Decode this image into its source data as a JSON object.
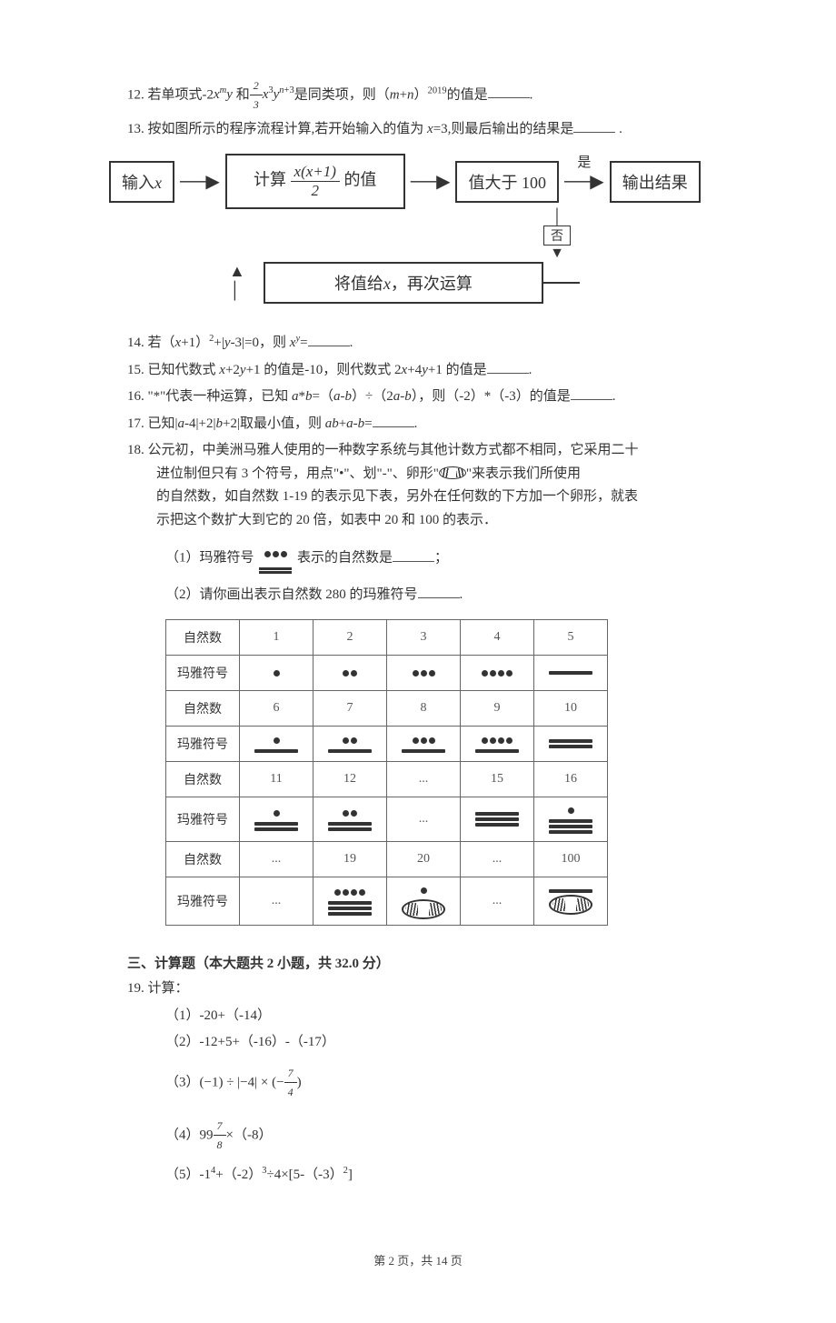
{
  "q12": {
    "num": "12.",
    "text_a": "若单项式-2",
    "expr1_html": "<span class='it'>x<sup>m</sup>y</span>",
    "text_b": "和",
    "expr2_html": "<span class='frac' style='font-size:12px;'><span class='num' style='font-size:12px;'>2</span><span class='den' style='font-size:12px;'>3</span></span><span class='it'>x</span><sup>3</sup><span class='it'>y</span><sup><span class='it'>n</span>+3</sup>",
    "text_c": "是同类项，则（",
    "expr3_html": "<span class='it'>m</span>+<span class='it'>n</span>",
    "text_d": "）",
    "sup": "2019",
    "text_e": "的值是",
    "text_f": "."
  },
  "q13": {
    "num": "13.",
    "text": "按如图所示的程序流程计算,若开始输入的值为 ",
    "expr_html": "<span class='it'>x</span>=3",
    "text2": ",则最后输出的结果是",
    "text3": " ."
  },
  "flow": {
    "b1": "输入<span class='it'>x</span>",
    "b2_pre": "计算",
    "b2_num": "<span class='it'>x</span>(<span class='it'>x</span>+1)",
    "b2_den": "2",
    "b2_post": "的值",
    "b3": "值大于 100",
    "b4": "输出结果",
    "b5": "将值给<span class='it'>x</span>，再次运算",
    "yes": "是",
    "no": "否"
  },
  "q14": {
    "num": "14.",
    "text_a": "若（",
    "e1": "<span class='it'>x</span>+1",
    "text_b": "）",
    "sup": "2",
    "text_c": "+|<span class='it'>y</span>-3|=0，则 ",
    "e2": "<span class='it'>x<sup>y</sup></span>=",
    "text_d": "."
  },
  "q15": {
    "num": "15.",
    "text_a": "已知代数式 ",
    "e1": "<span class='it'>x</span>+2<span class='it'>y</span>+1",
    "text_b": " 的值是-10，则代数式 ",
    "e2": "2<span class='it'>x</span>+4<span class='it'>y</span>+1",
    "text_c": " 的值是",
    "text_d": "."
  },
  "q16": {
    "num": "16.",
    "text_a": "\"*\"代表一种运算，已知 ",
    "e1": "<span class='it'>a</span>*<span class='it'>b</span>=（<span class='it'>a</span>-<span class='it'>b</span>）÷（2<span class='it'>a</span>-<span class='it'>b</span>）",
    "text_b": "，则（-2）*（-3）的值是",
    "text_c": "."
  },
  "q17": {
    "num": "17.",
    "text_a": "已知|<span class='it'>a</span>-4|+2|<span class='it'>b</span>+2|取最小值，则 ",
    "e1": "<span class='it'>ab</span>+<span class='it'>a</span>-<span class='it'>b</span>=",
    "text_b": "."
  },
  "q18": {
    "num": "18.",
    "line1": "公元初，中美洲马雅人使用的一种数字系统与其他计数方式都不相同，它采用二十",
    "line2a": "进位制但只有 3 个符号，用点\"•\"、划\"-\"、卵形\"",
    "line2b": "\"来表示我们所使用",
    "line3": "的自然数，如自然数 1-19 的表示见下表，另外在任何数的下方加一个卵形，就表",
    "line4": "示把这个数扩大到它的 20 倍，如表中 20 和 100 的表示．",
    "p1a": "（1）玛雅符号",
    "p1b": " 表示的自然数是",
    "p1c": "；",
    "p2a": "（2）请你画出表示自然数 280 的玛雅符号",
    "p2b": "."
  },
  "maya": {
    "row_nat": "自然数",
    "row_sym": "玛雅符号",
    "n": [
      "1",
      "2",
      "3",
      "4",
      "5",
      "6",
      "7",
      "8",
      "9",
      "10",
      "11",
      "12",
      "...",
      "15",
      "16",
      "...",
      "19",
      "20",
      "...",
      "100"
    ]
  },
  "sec3": {
    "title": "三、计算题（本大题共 2 小题，共 32.0 分）"
  },
  "q19": {
    "num": "19.",
    "title": "计算：",
    "i1": "（1）-20+（-14）",
    "i2": "（2）-12+5+（-16）-（-17）",
    "i3_html": "（3）(−1) ÷ |−4| × (−<span class='frac' style='font-size:12px;'><span class='num' style='font-size:12px;'>7</span><span class='den' style='font-size:12px;'>4</span></span>)",
    "i4_html": "（4）99<span class='frac' style='font-size:12px;'><span class='num' style='font-size:12px;'>7</span><span class='den' style='font-size:12px;'>8</span></span>×（-8）",
    "i5_html": "（5）-1<sup>4</sup>+（-2）<sup>3</sup>÷4×[5-（-3）<sup>2</sup>]"
  },
  "footer": "第 2 页，共 14 页"
}
